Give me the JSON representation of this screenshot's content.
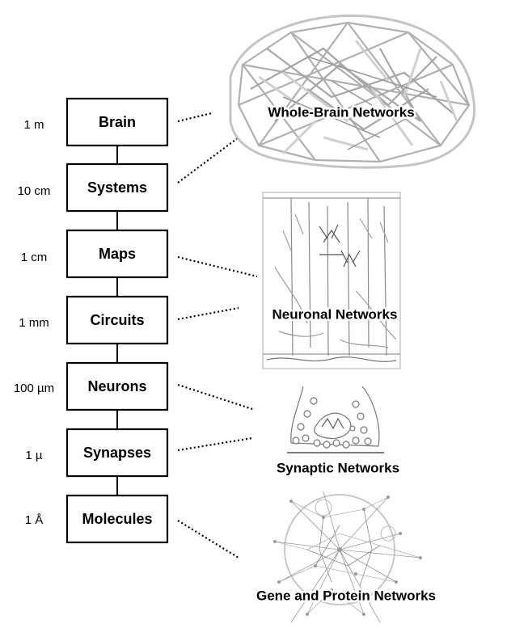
{
  "levels": [
    {
      "label": "Brain",
      "scale": "1 m"
    },
    {
      "label": "Systems",
      "scale": "10 cm"
    },
    {
      "label": "Maps",
      "scale": "1 cm"
    },
    {
      "label": "Circuits",
      "scale": "1 mm"
    },
    {
      "label": "Neurons",
      "scale": "100 µm"
    },
    {
      "label": "Synapses",
      "scale": "1 µ"
    },
    {
      "label": "Molecules",
      "scale": "1 Å"
    }
  ],
  "networks": [
    {
      "label": "Whole-Brain Networks",
      "image": "brain-graph-illustration"
    },
    {
      "label": "Neuronal Networks",
      "image": "cortical-neuron-drawing"
    },
    {
      "label": "Synaptic Networks",
      "image": "synapse-vesicle-drawing"
    },
    {
      "label": "Gene and Protein Networks",
      "image": "protein-interaction-graph"
    }
  ],
  "colors": {
    "illustration": "#9a9a9a",
    "box_stroke": "#000000"
  }
}
